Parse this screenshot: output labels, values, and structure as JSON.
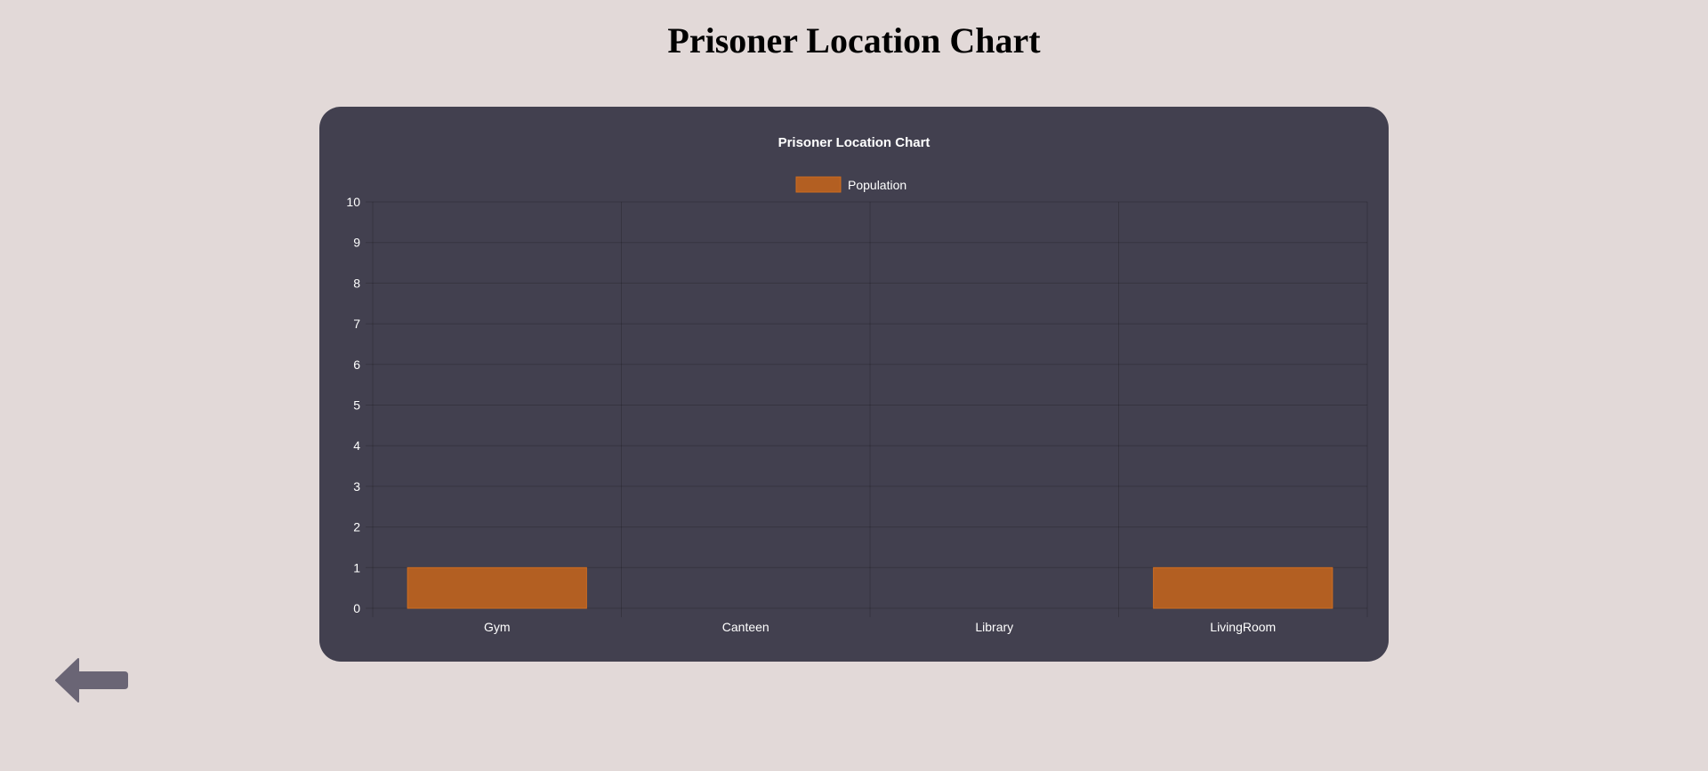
{
  "page": {
    "title": "Prisoner Location Chart"
  },
  "colors": {
    "background": "#e2d9d8",
    "card": "#42404f",
    "bar_fill": "#b35f22",
    "bar_border": "#cf6d1f",
    "back_icon": "#6a6575"
  },
  "back_button": {
    "icon": "arrow-left-icon"
  },
  "chart_data": {
    "type": "bar",
    "title": "Prisoner Location Chart",
    "categories": [
      "Gym",
      "Canteen",
      "Library",
      "LivingRoom"
    ],
    "series": [
      {
        "name": "Population",
        "values": [
          1,
          0,
          0,
          1
        ]
      }
    ],
    "ylim": [
      0,
      10
    ],
    "yticks": [
      0,
      1,
      2,
      3,
      4,
      5,
      6,
      7,
      8,
      9,
      10
    ],
    "grid": true,
    "legend": "top-center"
  }
}
